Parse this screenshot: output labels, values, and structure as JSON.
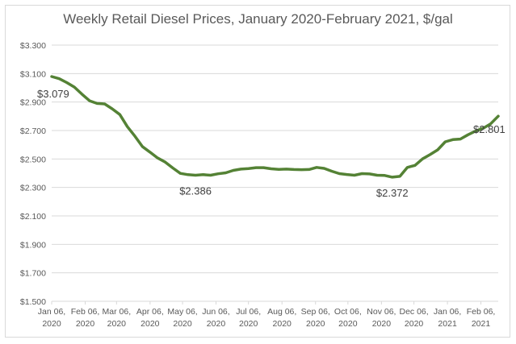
{
  "chart_data": {
    "type": "line",
    "title": "Weekly Retail Diesel Prices, January 2020-February 2021, $/gal",
    "xlabel": "",
    "ylabel": "",
    "ylim": [
      1.5,
      3.3
    ],
    "grid": true,
    "legend": "none",
    "line_color": "#548235",
    "y_ticks": [
      {
        "value": 3.3,
        "label": "$3.300"
      },
      {
        "value": 3.1,
        "label": "$3.100"
      },
      {
        "value": 2.9,
        "label": "$2.900"
      },
      {
        "value": 2.7,
        "label": "$2.700"
      },
      {
        "value": 2.5,
        "label": "$2.500"
      },
      {
        "value": 2.3,
        "label": "$2.300"
      },
      {
        "value": 2.1,
        "label": "$2.100"
      },
      {
        "value": 1.9,
        "label": "$1.900"
      },
      {
        "value": 1.7,
        "label": "$1.700"
      },
      {
        "value": 1.5,
        "label": "$1.500"
      }
    ],
    "x_ticks": [
      {
        "week": 0,
        "line1": "Jan 06,",
        "line2": "2020"
      },
      {
        "week": 4.43,
        "line1": "Feb 06,",
        "line2": "2020"
      },
      {
        "week": 8.57,
        "line1": "Mar 06,",
        "line2": "2020"
      },
      {
        "week": 13.0,
        "line1": "Apr 06,",
        "line2": "2020"
      },
      {
        "week": 17.29,
        "line1": "May 06,",
        "line2": "2020"
      },
      {
        "week": 21.71,
        "line1": "Jun 06,",
        "line2": "2020"
      },
      {
        "week": 26.0,
        "line1": "Jul 06,",
        "line2": "2020"
      },
      {
        "week": 30.43,
        "line1": "Aug 06,",
        "line2": "2020"
      },
      {
        "week": 34.86,
        "line1": "Sep 06,",
        "line2": "2020"
      },
      {
        "week": 39.14,
        "line1": "Oct 06,",
        "line2": "2020"
      },
      {
        "week": 43.57,
        "line1": "Nov 06,",
        "line2": "2020"
      },
      {
        "week": 47.86,
        "line1": "Dec 06,",
        "line2": "2020"
      },
      {
        "week": 52.29,
        "line1": "Jan 06,",
        "line2": "2021"
      },
      {
        "week": 56.71,
        "line1": "Feb 06,",
        "line2": "2021"
      }
    ],
    "x_max_week": 57.5,
    "series": [
      {
        "name": "Weekly Retail Diesel Price",
        "values": [
          3.079,
          3.064,
          3.037,
          3.005,
          2.955,
          2.909,
          2.89,
          2.887,
          2.852,
          2.812,
          2.727,
          2.66,
          2.586,
          2.548,
          2.507,
          2.478,
          2.437,
          2.399,
          2.39,
          2.386,
          2.39,
          2.386,
          2.396,
          2.403,
          2.42,
          2.429,
          2.433,
          2.439,
          2.439,
          2.431,
          2.427,
          2.429,
          2.426,
          2.425,
          2.426,
          2.441,
          2.434,
          2.414,
          2.397,
          2.391,
          2.386,
          2.397,
          2.395,
          2.386,
          2.384,
          2.372,
          2.378,
          2.441,
          2.455,
          2.501,
          2.531,
          2.564,
          2.621,
          2.636,
          2.64,
          2.67,
          2.696,
          2.716,
          2.747,
          2.801
        ]
      }
    ],
    "annotations": [
      {
        "index": 0,
        "label": "$3.079",
        "position": "below-left"
      },
      {
        "index": 19,
        "label": "$2.386",
        "position": "below"
      },
      {
        "index": 45,
        "label": "$2.372",
        "position": "below"
      },
      {
        "index": 59,
        "label": "$2.801",
        "position": "left"
      }
    ]
  }
}
